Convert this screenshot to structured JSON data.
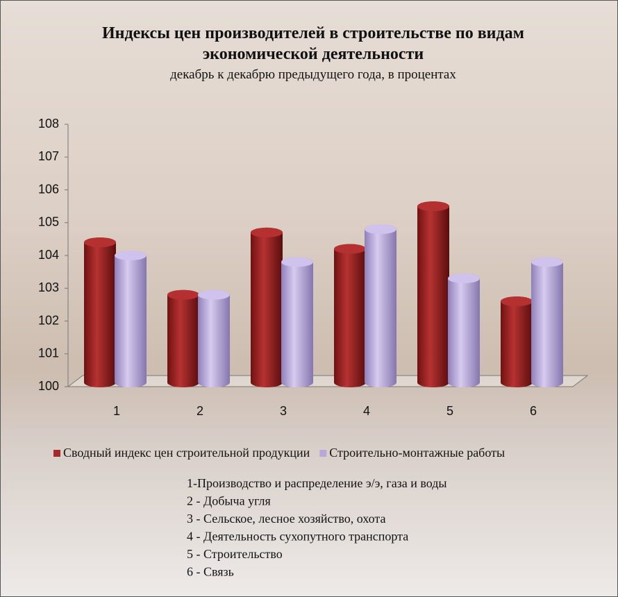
{
  "chart_data": {
    "type": "bar",
    "title": "Индексы цен производителей в строительстве по видам экономической деятельности",
    "subtitle": "декабрь к декабрю предыдущего года, в процентах",
    "categories": [
      "1",
      "2",
      "3",
      "4",
      "5",
      "6"
    ],
    "series": [
      {
        "name": "Сводный индекс цен строительной продукции",
        "color": "#a52a2a",
        "values": [
          104.4,
          102.8,
          104.7,
          104.2,
          105.5,
          102.6
        ]
      },
      {
        "name": "Строительно-монтажные работы",
        "color": "#b9a7dc",
        "values": [
          104.0,
          102.8,
          103.8,
          104.8,
          103.3,
          103.8
        ]
      }
    ],
    "ylim": [
      100,
      108
    ],
    "yticks": [
      100,
      101,
      102,
      103,
      104,
      105,
      106,
      107,
      108
    ],
    "notes": [
      "1-Производство и распределение э/э, газа и воды",
      "2 - Добыча угля",
      "3 - Сельское, лесное хозяйство, охота",
      "4 - Деятельность сухопутного транспорта",
      "5 - Строительство",
      "6 - Связь"
    ]
  }
}
